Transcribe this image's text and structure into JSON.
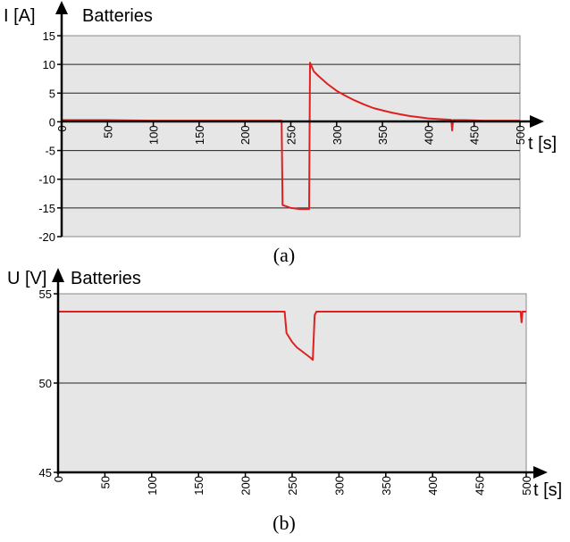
{
  "colors": {
    "plot_background": "#e6e6e6",
    "grid_line": "#222222",
    "series_line": "#e02020",
    "axis": "#000000"
  },
  "chart_data": [
    {
      "type": "line",
      "panel_label": "(a)",
      "title": "Batteries",
      "ylabel": "I [A]",
      "xlabel": "t [s]",
      "xlim": [
        0,
        500
      ],
      "ylim": [
        -20,
        15
      ],
      "x_ticks": [
        "0",
        "50",
        "100",
        "150",
        "200",
        "250",
        "300",
        "350",
        "400",
        "450",
        "500"
      ],
      "y_ticks": [
        "15",
        "10",
        "5",
        "0",
        "-5",
        "-10",
        "-15",
        "-20"
      ],
      "grid": "horizontal",
      "series": [
        {
          "points": [
            [
              0,
              0.3
            ],
            [
              50,
              0.3
            ],
            [
              100,
              0.2
            ],
            [
              150,
              0.2
            ],
            [
              200,
              0.2
            ],
            [
              240,
              0.2
            ],
            [
              241,
              -14.5
            ],
            [
              250,
              -15.0
            ],
            [
              260,
              -15.2
            ],
            [
              270,
              -15.2
            ],
            [
              271,
              10.3
            ],
            [
              275,
              8.8
            ],
            [
              280,
              8.0
            ],
            [
              290,
              6.6
            ],
            [
              300,
              5.4
            ],
            [
              310,
              4.5
            ],
            [
              320,
              3.7
            ],
            [
              330,
              3.0
            ],
            [
              340,
              2.4
            ],
            [
              350,
              2.0
            ],
            [
              360,
              1.6
            ],
            [
              370,
              1.3
            ],
            [
              380,
              1.0
            ],
            [
              390,
              0.8
            ],
            [
              400,
              0.6
            ],
            [
              410,
              0.5
            ],
            [
              420,
              0.4
            ],
            [
              425,
              0.35
            ],
            [
              426,
              -1.5
            ],
            [
              427,
              0.3
            ],
            [
              440,
              0.3
            ],
            [
              460,
              0.2
            ],
            [
              480,
              0.2
            ],
            [
              500,
              0.2
            ]
          ]
        }
      ]
    },
    {
      "type": "line",
      "panel_label": "(b)",
      "title": "Batteries",
      "ylabel": "U [V]",
      "xlabel": "t [s]",
      "xlim": [
        0,
        500
      ],
      "ylim": [
        45,
        55
      ],
      "x_ticks": [
        "0",
        "50",
        "100",
        "150",
        "200",
        "250",
        "300",
        "350",
        "400",
        "450",
        "500"
      ],
      "y_ticks": [
        "55",
        "50",
        "45"
      ],
      "grid": "horizontal",
      "series": [
        {
          "points": [
            [
              0,
              54.0
            ],
            [
              100,
              54.0
            ],
            [
              200,
              54.0
            ],
            [
              242,
              54.0
            ],
            [
              244,
              52.8
            ],
            [
              250,
              52.3
            ],
            [
              255,
              52.0
            ],
            [
              260,
              51.8
            ],
            [
              265,
              51.6
            ],
            [
              270,
              51.4
            ],
            [
              272,
              51.3
            ],
            [
              274,
              53.8
            ],
            [
              276,
              54.0
            ],
            [
              350,
              54.0
            ],
            [
              450,
              54.0
            ],
            [
              494,
              54.0
            ],
            [
              495,
              53.4
            ],
            [
              496,
              54.0
            ],
            [
              500,
              54.0
            ]
          ]
        }
      ]
    }
  ]
}
